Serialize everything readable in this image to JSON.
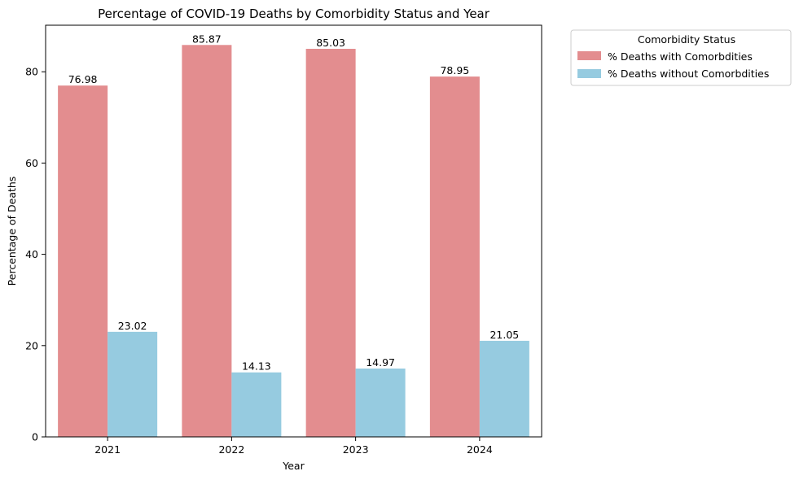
{
  "chart_data": {
    "type": "bar",
    "title": "Percentage of COVID-19 Deaths by Comorbidity Status and Year",
    "xlabel": "Year",
    "ylabel": "Percentage of Deaths",
    "categories": [
      "2021",
      "2022",
      "2023",
      "2024"
    ],
    "series": [
      {
        "name": "% Deaths with Comorbdities",
        "color": "#e38d8f",
        "values": [
          76.98,
          85.87,
          85.03,
          78.95
        ]
      },
      {
        "name": "% Deaths without Comorbdities",
        "color": "#96cbe0",
        "values": [
          23.02,
          14.13,
          14.97,
          21.05
        ]
      }
    ],
    "value_labels": [
      [
        "76.98",
        "85.87",
        "85.03",
        "78.95"
      ],
      [
        "23.02",
        "14.13",
        "14.97",
        "21.05"
      ]
    ],
    "ylim": [
      0,
      90.2
    ],
    "yticks": [
      0,
      20,
      40,
      60,
      80
    ],
    "ytick_labels": [
      "0",
      "20",
      "40",
      "60",
      "80"
    ],
    "grid": false,
    "legend": {
      "title": "Comorbidity Status",
      "placement": "outside-upper-right"
    }
  }
}
